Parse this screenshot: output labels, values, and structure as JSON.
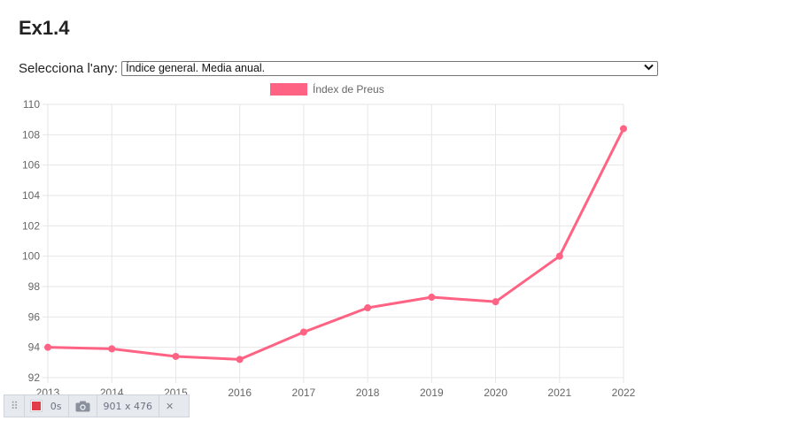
{
  "page": {
    "title": "Ex1.4"
  },
  "selector": {
    "label": "Selecciona l'any:",
    "selected": "Índice general. Media anual."
  },
  "toolbar": {
    "time": "0s",
    "size": "901 x 476"
  },
  "chart_data": {
    "type": "line",
    "x": [
      "2013",
      "2014",
      "2015",
      "2016",
      "2017",
      "2018",
      "2019",
      "2020",
      "2021",
      "2022"
    ],
    "series": [
      {
        "name": "Índex de Preus",
        "values": [
          94.0,
          93.9,
          93.4,
          93.2,
          95.0,
          96.6,
          97.3,
          97.0,
          100.0,
          108.4
        ],
        "color": "#ff6384"
      }
    ],
    "y_ticks": [
      "92",
      "94",
      "96",
      "98",
      "100",
      "102",
      "104",
      "106",
      "108",
      "110"
    ],
    "ylim": [
      92,
      110
    ],
    "grid": true,
    "legend": "top-center",
    "colors": {
      "grid": "#e6e6e6",
      "tick_text": "#666666"
    }
  }
}
